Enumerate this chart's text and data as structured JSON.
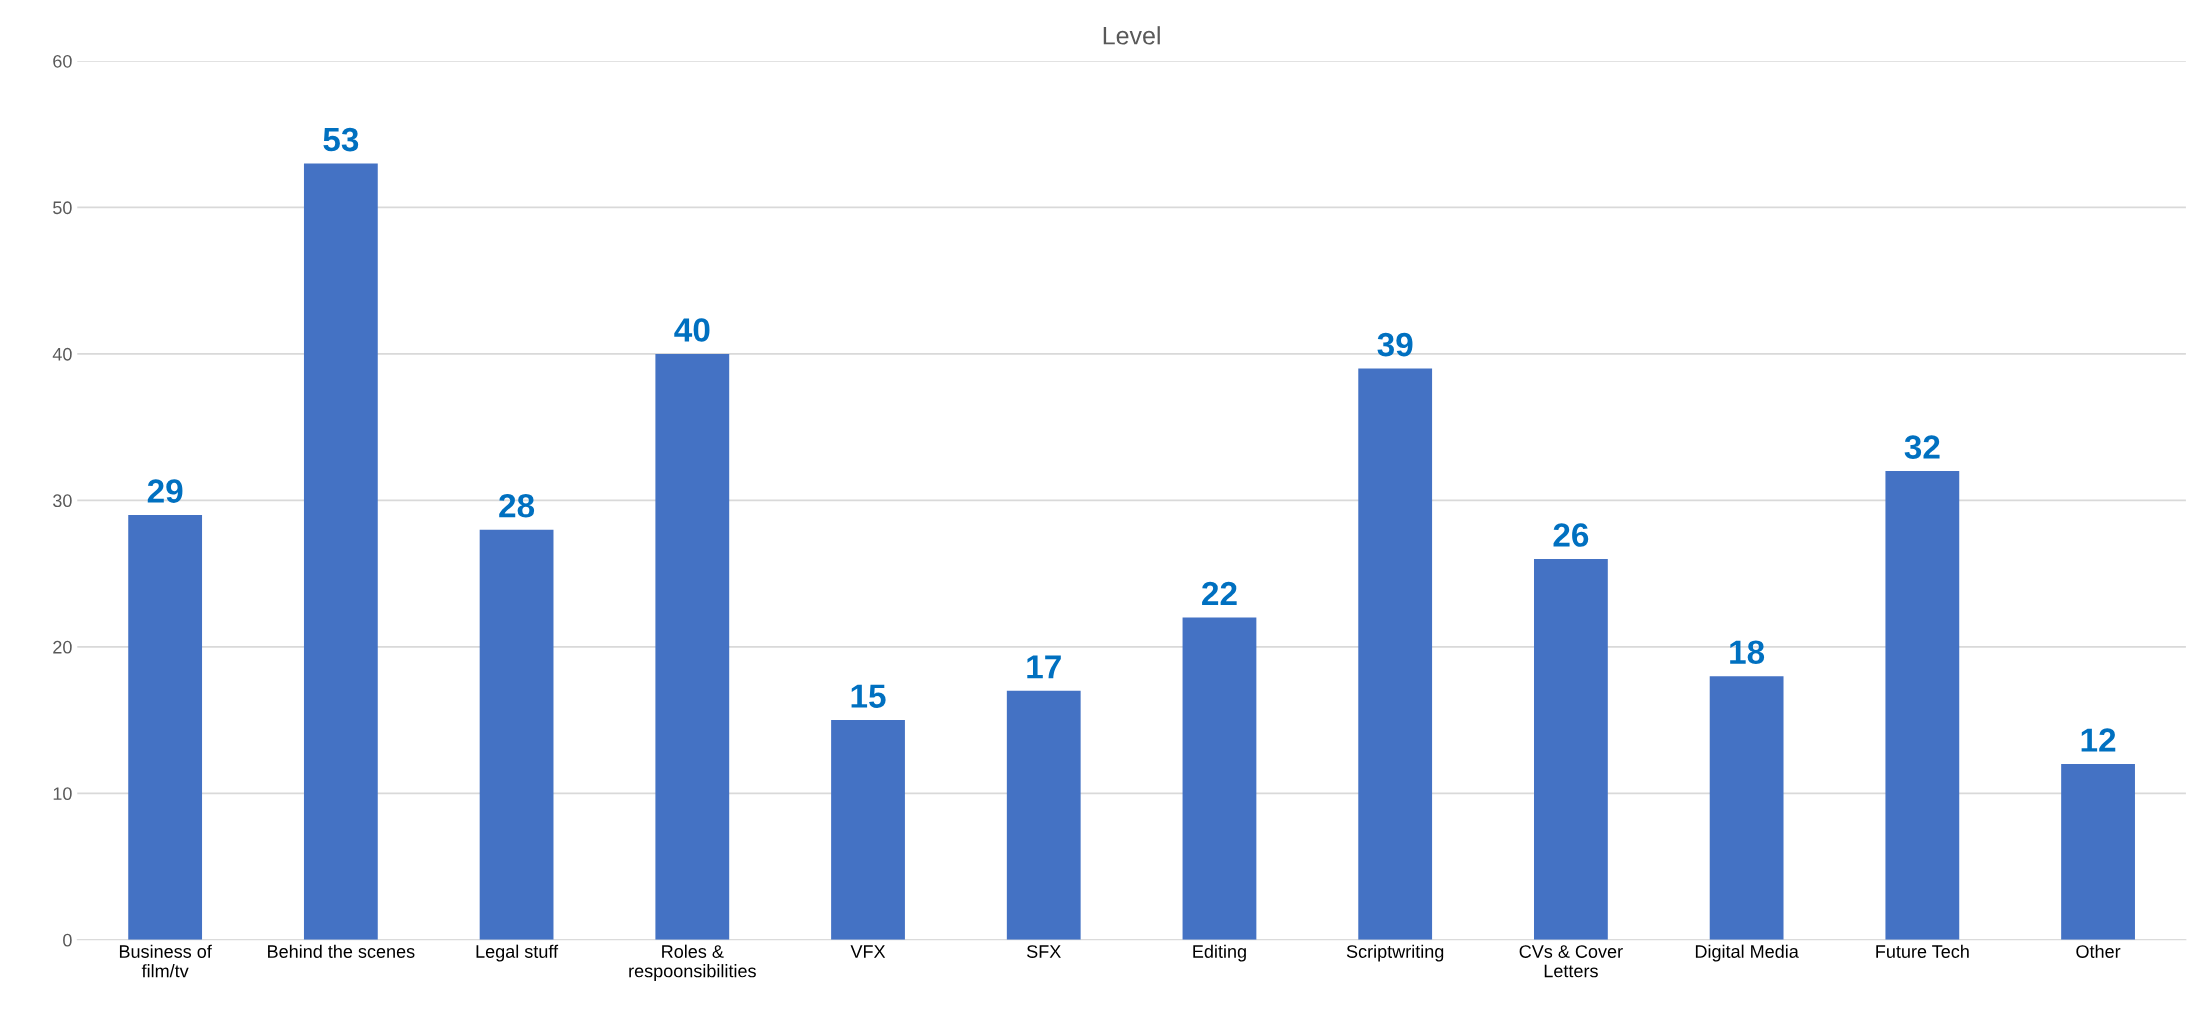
{
  "chart_data": {
    "type": "bar",
    "title": "Level",
    "categories": [
      "Business of\nfilm/tv",
      "Behind the scenes",
      "Legal stuff",
      "Roles &\nrespoonsibilities",
      "VFX",
      "SFX",
      "Editing",
      "Scriptwriting",
      "CVs & Cover\nLetters",
      "Digital Media",
      "Future Tech",
      "Other"
    ],
    "values": [
      29,
      53,
      28,
      40,
      15,
      17,
      22,
      39,
      26,
      18,
      32,
      12
    ],
    "color": "#4472c4",
    "ylim": [
      0,
      60
    ],
    "yticks": [
      0,
      10,
      20,
      30,
      40,
      50,
      60
    ],
    "grid": "y",
    "data_labels": true,
    "legend": false
  }
}
